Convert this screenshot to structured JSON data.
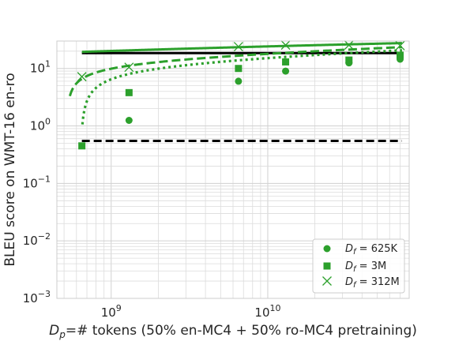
{
  "chart_data": {
    "type": "line",
    "title": "",
    "xlabel_main": "D",
    "xlabel_sub": "p",
    "xlabel_rest": "=# tokens (50% en-MC4 + 50% ro-MC4 pretraining)",
    "ylabel": "BLEU score on WMT-16 en-ro",
    "x_scale": "log",
    "y_scale": "log",
    "xlim": [
      450000000,
      80000000000
    ],
    "ylim": [
      0.001,
      30
    ],
    "grid": true,
    "legend_position": "lower-right",
    "x_ticks": [
      {
        "base": "10",
        "exp": "9",
        "value": 1000000000
      },
      {
        "base": "10",
        "exp": "10",
        "value": 10000000000
      }
    ],
    "y_ticks": [
      {
        "base": "10",
        "exp": "1",
        "value": 10
      },
      {
        "base": "10",
        "exp": "0",
        "value": 1
      },
      {
        "base": "10",
        "exp": "−1",
        "value": 0.1
      },
      {
        "base": "10",
        "exp": "−2",
        "value": 0.01
      },
      {
        "base": "10",
        "exp": "−3",
        "value": 0.001
      }
    ],
    "color": "#2ca02c",
    "reference_lines": [
      {
        "style": "solid",
        "color": "#000000",
        "y": 18.5,
        "x_range": [
          650000000,
          72000000000
        ]
      },
      {
        "style": "dashed",
        "color": "#000000",
        "y": 0.55,
        "x_range": [
          650000000,
          72000000000
        ]
      }
    ],
    "series": [
      {
        "label_main": "D",
        "label_sub": "f",
        "label_rest": " = 625K",
        "marker": "circle",
        "line_style": "dotted",
        "x": [
          1300000000,
          6500000000,
          13000000000,
          33000000000,
          70000000000
        ],
        "y": [
          1.25,
          6.0,
          9.0,
          12.5,
          14.5
        ],
        "fit": {
          "A": 6.3,
          "B": 9.0,
          "D0": 600000000,
          "from": 655000000
        }
      },
      {
        "label_main": "D",
        "label_sub": "f",
        "label_rest": " = 3M",
        "marker": "square",
        "line_style": "dashed",
        "x": [
          650000000,
          1300000000,
          6500000000,
          13000000000,
          33000000000,
          70000000000
        ],
        "y": [
          0.45,
          3.8,
          10.0,
          13.0,
          14.0,
          17.0
        ],
        "fit": {
          "A": 6.3,
          "B": 11.8,
          "D0": 500000000,
          "from": 545000000
        }
      },
      {
        "label_main": "D",
        "label_sub": "f",
        "label_rest": " = 312M",
        "marker": "x",
        "line_style": "solid",
        "x": [
          650000000,
          1300000000,
          6500000000,
          13000000000,
          33000000000,
          70000000000
        ],
        "y": [
          7.2,
          10.5,
          24.0,
          25.5,
          25.5,
          25.0
        ],
        "fit": {
          "A": 4.0,
          "B": 20.2,
          "D0": 0,
          "from": 650000000
        }
      }
    ]
  }
}
